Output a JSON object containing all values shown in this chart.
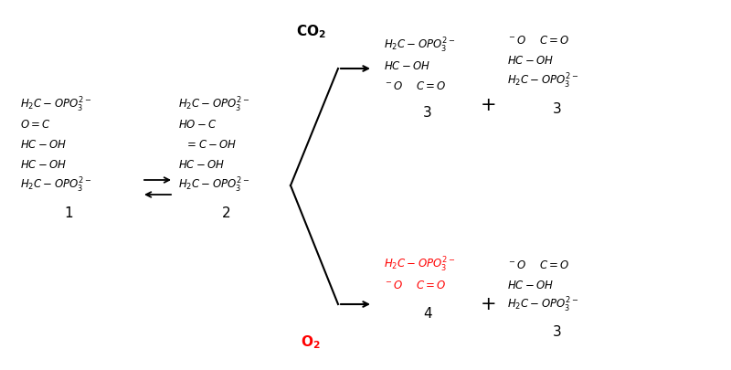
{
  "bg_color": "#ffffff",
  "black": "#000000",
  "red": "#ff0000",
  "fs": 8.5,
  "fs_label": 11,
  "fs_plus": 13
}
